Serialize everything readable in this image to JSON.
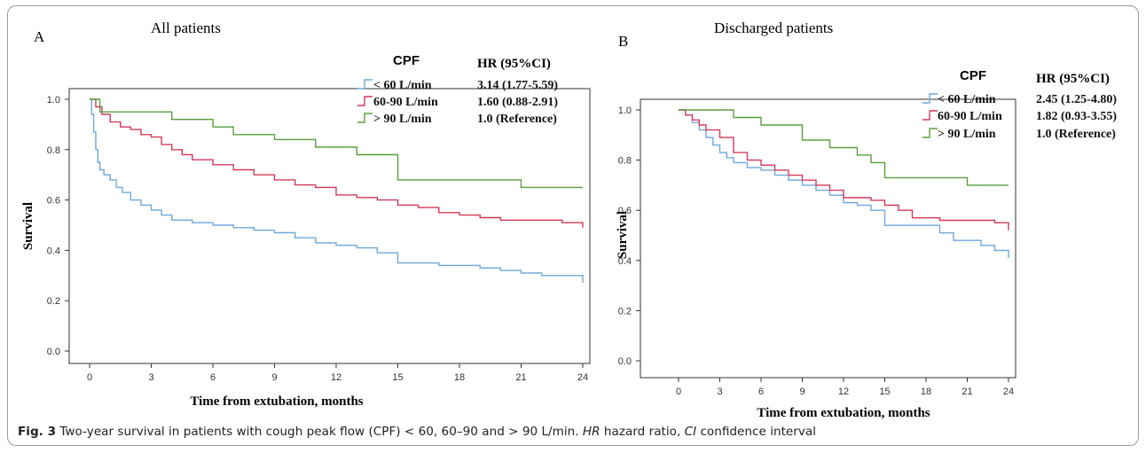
{
  "figure": {
    "caption_label": "Fig. 3",
    "caption_text_1": " Two-year survival in patients with cough peak flow (CPF) < 60, 60–90 and > 90 L/min. ",
    "caption_hr_abbr": "HR",
    "caption_text_2": " hazard ratio, ",
    "caption_ci_abbr": "CI",
    "caption_text_3": " confidence interval"
  },
  "colors": {
    "lt60": "#6fa8dc",
    "mid": "#d23a5a",
    "gt90": "#5a9e3c",
    "axis": "#333333"
  },
  "chart_data": [
    {
      "type": "line",
      "panel_label": "A",
      "title": "All patients",
      "xlabel": "Time from extubation, months",
      "ylabel": "Survival",
      "xlim": [
        0,
        24
      ],
      "ylim": [
        0,
        1
      ],
      "x_ticks": [
        "0",
        "3",
        "6",
        "9",
        "12",
        "15",
        "18",
        "21",
        "24"
      ],
      "y_ticks": [
        "0.0",
        "0.2",
        "0.4",
        "0.6",
        "0.8",
        "1.0"
      ],
      "legend_title": "CPF",
      "hr_header": "HR (95%CI)",
      "series": [
        {
          "name": "< 60 L/min",
          "hr": "3.14 (1.77-5.59)",
          "x": [
            0,
            0.1,
            0.2,
            0.3,
            0.4,
            0.5,
            0.7,
            1,
            1.3,
            1.6,
            2,
            2.5,
            3,
            3.5,
            4,
            5,
            6,
            7,
            8,
            9,
            10,
            11,
            12,
            13,
            14,
            15,
            16,
            17,
            18,
            19,
            20,
            21,
            22,
            23,
            24
          ],
          "y": [
            1.0,
            0.94,
            0.87,
            0.8,
            0.75,
            0.72,
            0.7,
            0.68,
            0.65,
            0.63,
            0.6,
            0.58,
            0.56,
            0.54,
            0.52,
            0.51,
            0.5,
            0.49,
            0.48,
            0.47,
            0.45,
            0.43,
            0.42,
            0.41,
            0.39,
            0.35,
            0.35,
            0.34,
            0.34,
            0.33,
            0.32,
            0.31,
            0.3,
            0.3,
            0.27
          ]
        },
        {
          "name": "60-90 L/min",
          "hr": "1.60 (0.88-2.91)",
          "x": [
            0,
            0.3,
            0.6,
            1,
            1.5,
            2,
            2.5,
            3,
            3.5,
            4,
            4.5,
            5,
            6,
            7,
            8,
            9,
            10,
            11,
            12,
            13,
            14,
            15,
            16,
            17,
            18,
            19,
            20,
            21,
            22,
            23,
            24
          ],
          "y": [
            1.0,
            0.97,
            0.94,
            0.91,
            0.89,
            0.88,
            0.86,
            0.85,
            0.82,
            0.8,
            0.78,
            0.76,
            0.74,
            0.72,
            0.7,
            0.68,
            0.66,
            0.65,
            0.62,
            0.61,
            0.6,
            0.58,
            0.57,
            0.55,
            0.54,
            0.53,
            0.52,
            0.52,
            0.52,
            0.51,
            0.49
          ]
        },
        {
          "name": "> 90 L/min",
          "hr": "1.0 (Reference)",
          "x": [
            0,
            0.5,
            1,
            3,
            4,
            6,
            7,
            9,
            11,
            13,
            15,
            19,
            21,
            24
          ],
          "y": [
            1.0,
            0.95,
            0.95,
            0.95,
            0.92,
            0.89,
            0.86,
            0.84,
            0.81,
            0.78,
            0.68,
            0.68,
            0.65,
            0.65
          ]
        }
      ]
    },
    {
      "type": "line",
      "panel_label": "B",
      "title": "Discharged patients",
      "xlabel": "Time from extubation, months",
      "ylabel": "Survival",
      "xlim": [
        0,
        24
      ],
      "ylim": [
        0,
        1
      ],
      "x_ticks": [
        "0",
        "3",
        "6",
        "9",
        "12",
        "15",
        "18",
        "21",
        "24"
      ],
      "y_ticks": [
        "0.0",
        "0.2",
        "0.4",
        "0.6",
        "0.8",
        "1.0"
      ],
      "legend_title": "CPF",
      "hr_header": "HR (95%CI)",
      "series": [
        {
          "name": "< 60 L/min",
          "hr": "2.45 (1.25-4.80)",
          "x": [
            0,
            0.5,
            1,
            1.5,
            2,
            2.5,
            3,
            3.5,
            4,
            5,
            6,
            7,
            8,
            9,
            10,
            11,
            12,
            13,
            14,
            15,
            16,
            17,
            18,
            19,
            20,
            21,
            22,
            23,
            24
          ],
          "y": [
            1.0,
            0.98,
            0.95,
            0.92,
            0.89,
            0.86,
            0.83,
            0.81,
            0.79,
            0.77,
            0.76,
            0.74,
            0.72,
            0.7,
            0.68,
            0.66,
            0.63,
            0.62,
            0.6,
            0.54,
            0.54,
            0.54,
            0.54,
            0.51,
            0.48,
            0.48,
            0.46,
            0.44,
            0.41
          ]
        },
        {
          "name": "60-90 L/min",
          "hr": "1.82 (0.93-3.55)",
          "x": [
            0,
            0.5,
            1,
            1.5,
            2,
            3,
            4,
            5,
            6,
            7,
            8,
            9,
            10,
            11,
            12,
            13,
            14,
            15,
            16,
            17,
            18,
            19,
            20,
            21,
            22,
            23,
            24
          ],
          "y": [
            1.0,
            0.98,
            0.96,
            0.94,
            0.92,
            0.89,
            0.83,
            0.8,
            0.78,
            0.76,
            0.74,
            0.72,
            0.7,
            0.68,
            0.65,
            0.65,
            0.64,
            0.62,
            0.6,
            0.57,
            0.57,
            0.56,
            0.56,
            0.56,
            0.56,
            0.55,
            0.52
          ]
        },
        {
          "name": "> 90 L/min",
          "hr": "1.0 (Reference)",
          "x": [
            0,
            3,
            4,
            6,
            9,
            11,
            13,
            14,
            15,
            21,
            24
          ],
          "y": [
            1.0,
            1.0,
            0.97,
            0.94,
            0.88,
            0.85,
            0.82,
            0.79,
            0.73,
            0.7,
            0.7
          ]
        }
      ]
    }
  ]
}
